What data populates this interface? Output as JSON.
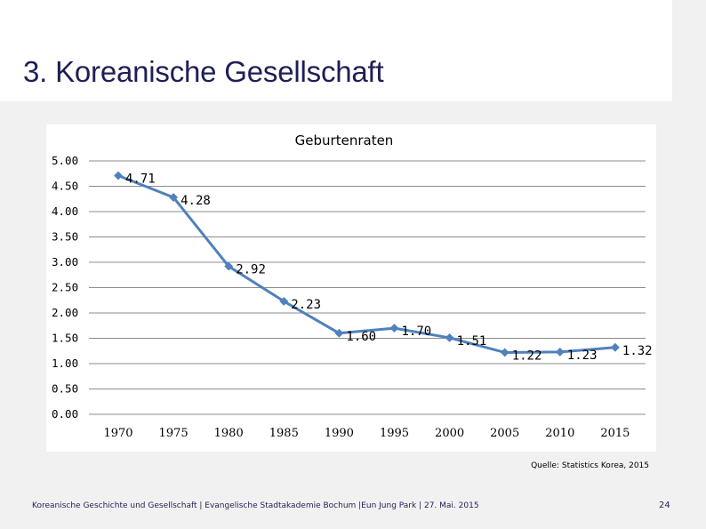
{
  "slide": {
    "title": "3. Koreanische Gesellschaft",
    "source": "Quelle: Statistics Korea, 2015",
    "footer": "Koreanische Geschichte und Gesellschaft | Evangelische Stadtakademie Bochum |Eun Jung Park | 27. Mai. 2015",
    "page_number": "24"
  },
  "colors": {
    "title": "#1f1f55",
    "background": "#f1f1f1",
    "line": "#4f81bd",
    "grid": "#8c8c8c"
  },
  "chart_data": {
    "type": "line",
    "title": "Geburtenraten",
    "categories": [
      "1970",
      "1975",
      "1980",
      "1985",
      "1990",
      "1995",
      "2000",
      "2005",
      "2010",
      "2015"
    ],
    "values": [
      4.71,
      4.28,
      2.92,
      2.23,
      1.6,
      1.7,
      1.51,
      1.22,
      1.23,
      1.32
    ],
    "value_labels": [
      "4.71",
      "4.28",
      "2.92",
      "2.23",
      "1.60",
      "1.70",
      "1.51",
      "1.22",
      "1.23",
      "1.32"
    ],
    "yticks": [
      "0.00",
      "0.50",
      "1.00",
      "1.50",
      "2.00",
      "2.50",
      "3.00",
      "3.50",
      "4.00",
      "4.50",
      "5.00"
    ],
    "ylim": [
      0,
      5
    ],
    "xlabel": "",
    "ylabel": "",
    "grid": true,
    "legend": "none"
  }
}
